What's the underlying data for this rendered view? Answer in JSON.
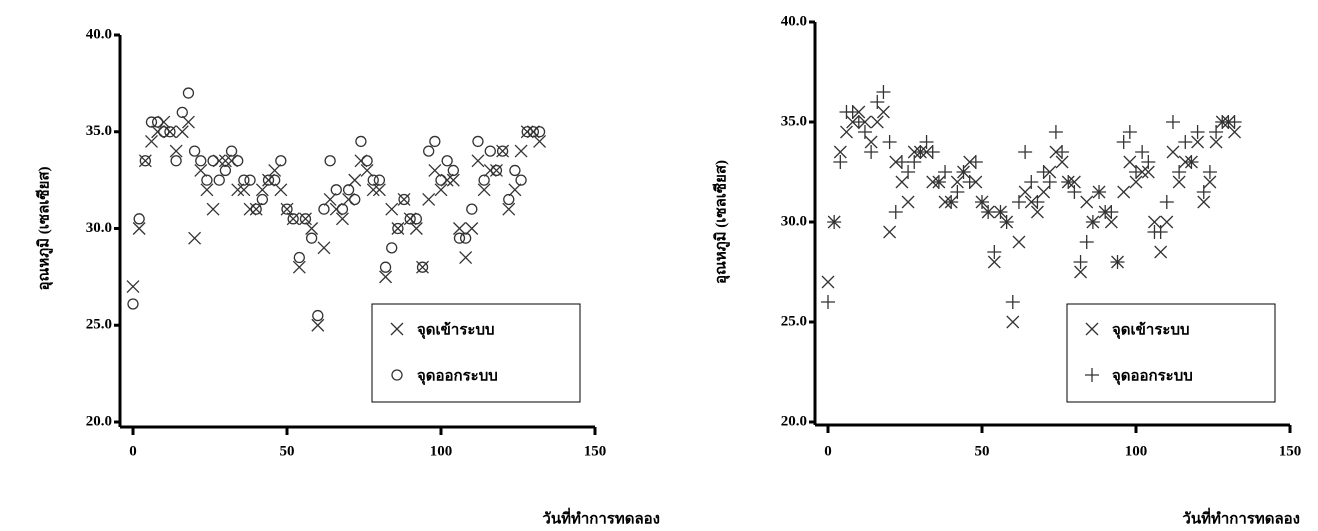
{
  "chart_data": [
    {
      "type": "scatter",
      "x_label": "วันที่ทำการทดลอง",
      "y_label": "อุณหภูมิ (เซลเซียส)",
      "x": [
        0,
        2,
        4,
        6,
        8,
        10,
        12,
        14,
        16,
        18,
        20,
        22,
        24,
        26,
        28,
        30,
        32,
        34,
        36,
        38,
        40,
        42,
        44,
        46,
        48,
        50,
        52,
        54,
        56,
        58,
        60,
        62,
        64,
        66,
        68,
        70,
        72,
        74,
        76,
        78,
        80,
        82,
        84,
        86,
        88,
        90,
        92,
        94,
        96,
        98,
        100,
        102,
        104,
        106,
        108,
        110,
        112,
        114,
        116,
        118,
        120,
        122,
        124,
        126,
        128,
        130,
        132
      ],
      "series": [
        {
          "name": "จุดเข้าระบบ",
          "marker": "x",
          "color": "#333333",
          "values": [
            27.0,
            30.0,
            33.5,
            34.5,
            35.0,
            35.5,
            35.0,
            34.0,
            35.0,
            35.5,
            29.5,
            33.0,
            32.0,
            31.0,
            33.5,
            33.5,
            33.5,
            32.0,
            32.0,
            31.0,
            31.0,
            32.0,
            32.5,
            33.0,
            32.0,
            31.0,
            30.5,
            28.0,
            30.5,
            30.0,
            25.0,
            29.0,
            31.5,
            31.0,
            30.5,
            31.5,
            32.5,
            33.5,
            33.0,
            32.0,
            32.0,
            27.5,
            31.0,
            30.0,
            31.5,
            30.5,
            30.0,
            28.0,
            31.5,
            33.0,
            32.0,
            32.5,
            32.5,
            30.0,
            28.5,
            30.0,
            33.5,
            32.0,
            33.0,
            33.0,
            34.0,
            31.0,
            32.0,
            34.0,
            35.0,
            35.0,
            34.5
          ]
        },
        {
          "name": "จุดออกระบบ",
          "marker": "o",
          "color": "#333333",
          "values": [
            26.1,
            30.5,
            33.5,
            35.5,
            35.5,
            35.0,
            35.0,
            33.5,
            36.0,
            37.0,
            34.0,
            33.5,
            32.5,
            33.5,
            32.5,
            33.0,
            34.0,
            33.5,
            32.5,
            32.5,
            31.0,
            31.5,
            32.5,
            32.5,
            33.5,
            31.0,
            30.5,
            28.5,
            30.5,
            29.5,
            25.5,
            31.0,
            33.5,
            32.0,
            31.0,
            32.0,
            31.5,
            34.5,
            33.5,
            32.5,
            32.5,
            28.0,
            29.0,
            30.0,
            31.5,
            30.5,
            30.5,
            28.0,
            34.0,
            34.5,
            32.5,
            33.5,
            33.0,
            29.5,
            29.5,
            31.0,
            34.5,
            32.5,
            34.0,
            33.0,
            34.0,
            31.5,
            33.0,
            32.5,
            35.0,
            35.0,
            35.0
          ]
        }
      ],
      "xlim": [
        0,
        150
      ],
      "xticks": [
        0,
        50,
        100,
        150
      ],
      "ylim": [
        20,
        40
      ],
      "yticks": [
        {
          "value": 20,
          "label": "20.0"
        },
        {
          "value": 25,
          "label": "25.0"
        },
        {
          "value": 30,
          "label": "30.0"
        },
        {
          "value": 35,
          "label": "35.0"
        },
        {
          "value": 40,
          "label": "40.0"
        }
      ],
      "legend": "lower right"
    },
    {
      "type": "scatter",
      "x_label": "วันที่ทำการทดลอง",
      "y_label": "อุณหภูมิ (เซลเซียส)",
      "x": [
        0,
        2,
        4,
        6,
        8,
        10,
        12,
        14,
        16,
        18,
        20,
        22,
        24,
        26,
        28,
        30,
        32,
        34,
        36,
        38,
        40,
        42,
        44,
        46,
        48,
        50,
        52,
        54,
        56,
        58,
        60,
        62,
        64,
        66,
        68,
        70,
        72,
        74,
        76,
        78,
        80,
        82,
        84,
        86,
        88,
        90,
        92,
        94,
        96,
        98,
        100,
        102,
        104,
        106,
        108,
        110,
        112,
        114,
        116,
        118,
        120,
        122,
        124,
        126,
        128,
        130,
        132
      ],
      "series": [
        {
          "name": "จุดเข้าระบบ",
          "marker": "x",
          "color": "#333333",
          "values": [
            27.0,
            30.0,
            33.5,
            34.5,
            35.0,
            35.5,
            35.0,
            34.0,
            35.0,
            35.5,
            29.5,
            33.0,
            32.0,
            31.0,
            33.5,
            33.5,
            33.5,
            32.0,
            32.0,
            31.0,
            31.0,
            32.0,
            32.5,
            33.0,
            32.0,
            31.0,
            30.5,
            28.0,
            30.5,
            30.0,
            25.0,
            29.0,
            31.5,
            31.0,
            30.5,
            31.5,
            32.5,
            33.5,
            33.0,
            32.0,
            32.0,
            27.5,
            31.0,
            30.0,
            31.5,
            30.5,
            30.0,
            28.0,
            31.5,
            33.0,
            32.0,
            32.5,
            32.5,
            30.0,
            28.5,
            30.0,
            33.5,
            32.0,
            33.0,
            33.0,
            34.0,
            31.0,
            32.0,
            34.0,
            35.0,
            35.0,
            34.5
          ]
        },
        {
          "name": "จุดออกระบบ",
          "marker": "+",
          "color": "#333333",
          "values": [
            26.0,
            30.0,
            33.0,
            35.5,
            35.5,
            35.0,
            34.5,
            33.5,
            36.0,
            36.5,
            34.0,
            30.5,
            33.0,
            32.5,
            33.0,
            33.5,
            34.0,
            33.5,
            32.0,
            32.5,
            31.0,
            31.5,
            32.5,
            32.0,
            33.0,
            31.0,
            30.5,
            28.5,
            30.5,
            30.0,
            26.0,
            31.0,
            33.5,
            32.0,
            31.0,
            32.5,
            32.0,
            34.5,
            33.5,
            32.0,
            31.5,
            28.0,
            29.0,
            30.0,
            31.5,
            30.5,
            30.5,
            28.0,
            34.0,
            34.5,
            32.5,
            33.5,
            33.0,
            29.5,
            29.5,
            31.0,
            35.0,
            32.5,
            34.0,
            33.0,
            34.5,
            31.5,
            32.5,
            34.5,
            35.0,
            35.0,
            35.0
          ]
        }
      ],
      "xlim": [
        0,
        150
      ],
      "xticks": [
        0,
        50,
        100,
        150
      ],
      "ylim": [
        20,
        40
      ],
      "yticks": [
        {
          "value": 20,
          "label": "20.0"
        },
        {
          "value": 25,
          "label": "25.0"
        },
        {
          "value": 30,
          "label": "30.0"
        },
        {
          "value": 35,
          "label": "35.0"
        },
        {
          "value": 40,
          "label": "40.0"
        }
      ],
      "legend": "lower right"
    }
  ]
}
